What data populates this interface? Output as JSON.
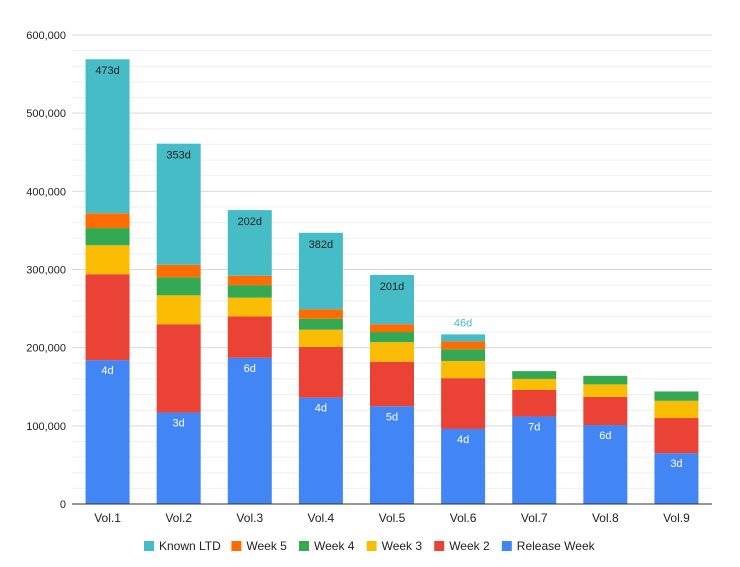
{
  "chart_data": {
    "type": "bar",
    "stacked": true,
    "categories": [
      "Vol.1",
      "Vol.2",
      "Vol.3",
      "Vol.4",
      "Vol.5",
      "Vol.6",
      "Vol.7",
      "Vol.8",
      "Vol.9"
    ],
    "series": [
      {
        "name": "Release Week",
        "color": "#4285F4",
        "values": [
          184000,
          117000,
          187000,
          136000,
          125000,
          96000,
          112000,
          101000,
          65000
        ],
        "labels": [
          "4d",
          "3d",
          "6d",
          "4d",
          "5d",
          "4d",
          "7d",
          "6d",
          "3d"
        ],
        "label_color": "#ffffff"
      },
      {
        "name": "Week 2",
        "color": "#EA4335",
        "values": [
          110000,
          113000,
          53000,
          65000,
          57000,
          65000,
          34000,
          36000,
          45000
        ]
      },
      {
        "name": "Week 3",
        "color": "#FBBC04",
        "values": [
          37000,
          37000,
          24000,
          22000,
          25000,
          22000,
          14000,
          16000,
          22000
        ]
      },
      {
        "name": "Week 4",
        "color": "#34A853",
        "values": [
          22000,
          23000,
          16000,
          14000,
          13000,
          15000,
          10000,
          11000,
          12000
        ]
      },
      {
        "name": "Week 5",
        "color": "#FF6D01",
        "values": [
          19000,
          16000,
          12000,
          12000,
          10000,
          10000,
          0,
          0,
          0
        ]
      },
      {
        "name": "Known LTD",
        "color": "#46BDC6",
        "values": [
          197000,
          155000,
          84000,
          98000,
          63000,
          9000,
          0,
          0,
          0
        ],
        "labels": [
          "473d",
          "353d",
          "202d",
          "382d",
          "201d",
          "46d",
          "",
          "",
          ""
        ],
        "label_color": "#222222"
      }
    ],
    "legend_order": [
      "Known LTD",
      "Week 5",
      "Week 4",
      "Week 3",
      "Week 2",
      "Release Week"
    ],
    "ylim": [
      0,
      600000
    ],
    "yticks": [
      "0",
      "100,000",
      "200,000",
      "300,000",
      "400,000",
      "500,000",
      "600,000"
    ],
    "ytick_values": [
      0,
      100000,
      200000,
      300000,
      400000,
      500000,
      600000
    ],
    "grid": true,
    "legend_position": "bottom",
    "title": "",
    "xlabel": "",
    "ylabel": ""
  }
}
